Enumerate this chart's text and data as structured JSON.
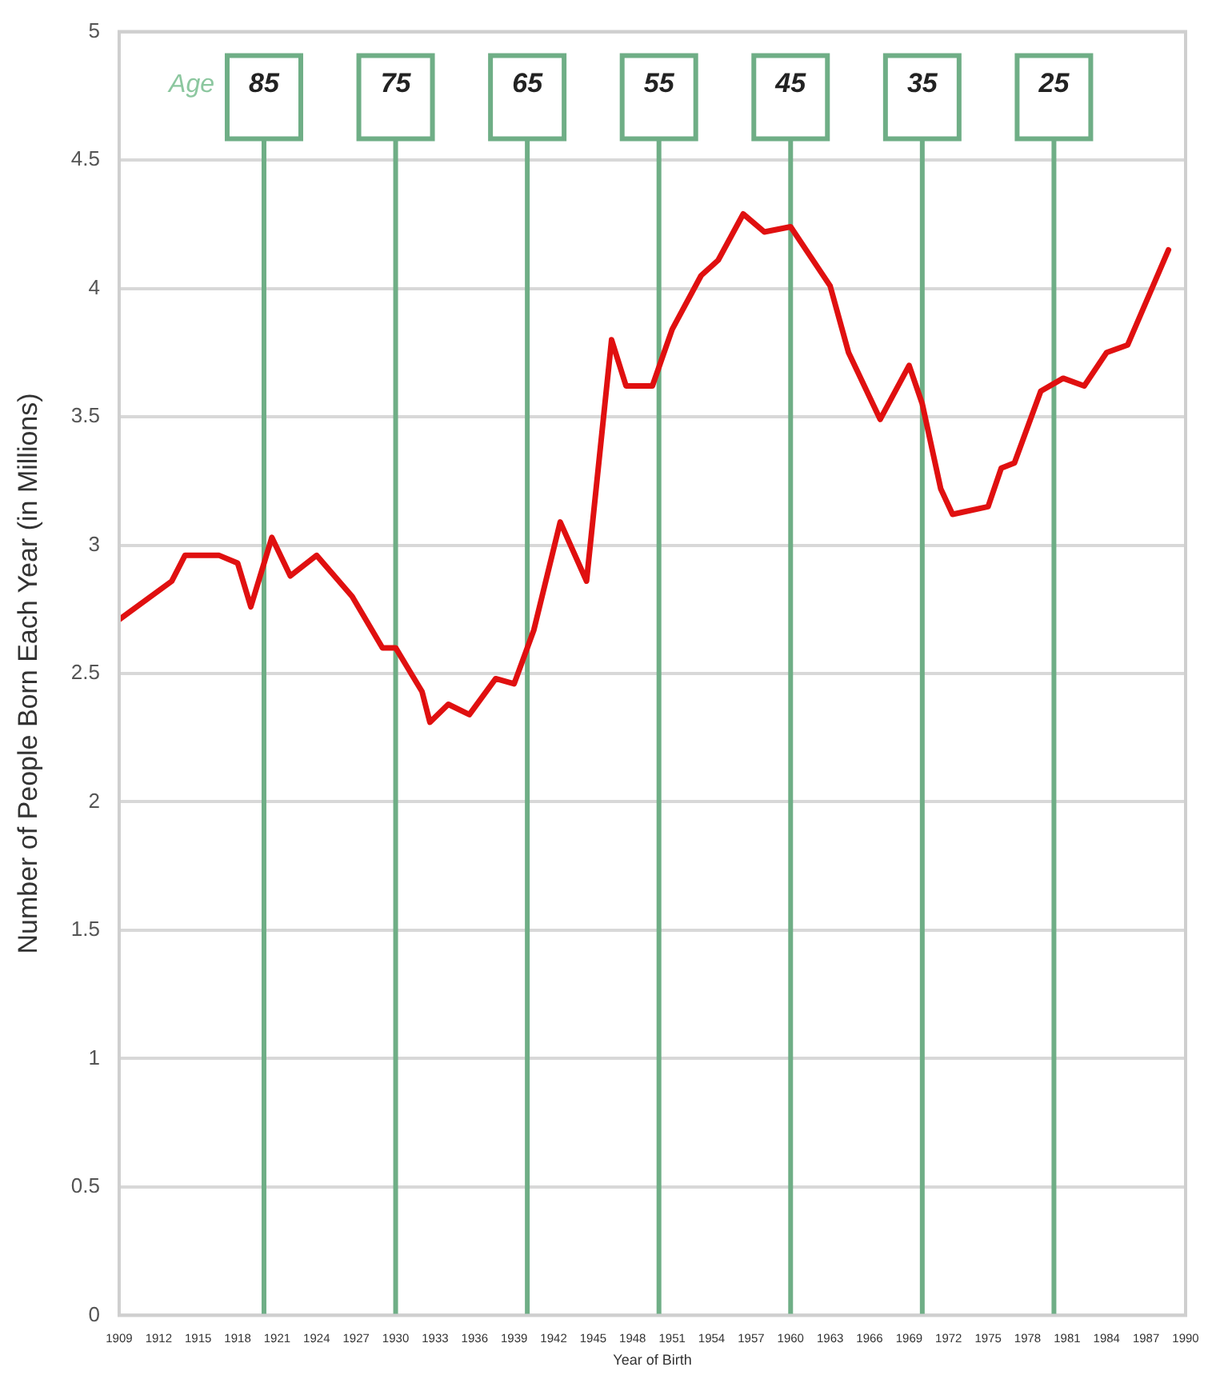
{
  "chart_data": {
    "type": "line",
    "xlabel": "Year of Birth",
    "ylabel": "Number of People Born Each Year (in Millions)",
    "annotations": [
      "Age",
      "85",
      "75",
      "65",
      "55",
      "45",
      "35",
      "25"
    ],
    "x": [
      1909,
      1913,
      1914,
      1916.6,
      1918,
      1919,
      1920.6,
      1922,
      1924,
      1926.7,
      1929,
      1930,
      1932,
      1932.6,
      1934,
      1935.6,
      1937.6,
      1939,
      1940.5,
      1942.5,
      1944.5,
      1946.4,
      1947.5,
      1949.5,
      1951,
      1953.2,
      1954.5,
      1956.4,
      1958,
      1960,
      1963,
      1964.4,
      1966.8,
      1969,
      1970,
      1971.4,
      1972.3,
      1975,
      1976,
      1977,
      1979,
      1980.7,
      1982.3,
      1984,
      1985.6,
      1988.7
    ],
    "series": [
      {
        "color": "#e01010",
        "values": [
          2.71,
          2.86,
          2.96,
          2.96,
          2.93,
          2.76,
          3.03,
          2.88,
          2.96,
          2.8,
          2.6,
          2.6,
          2.43,
          2.31,
          2.38,
          2.34,
          2.48,
          2.46,
          2.67,
          3.09,
          2.86,
          3.8,
          3.62,
          3.62,
          3.84,
          4.05,
          4.11,
          4.29,
          4.22,
          4.24,
          4.01,
          3.75,
          3.49,
          3.7,
          3.55,
          3.22,
          3.12,
          3.15,
          3.3,
          3.32,
          3.6,
          3.65,
          3.62,
          3.75,
          3.78,
          4.15
        ]
      }
    ],
    "xlim": [
      1909,
      1990
    ],
    "xticks": [
      1909,
      1912,
      1915,
      1918,
      1921,
      1924,
      1927,
      1930,
      1933,
      1936,
      1939,
      1942,
      1945,
      1948,
      1951,
      1954,
      1957,
      1960,
      1963,
      1966,
      1969,
      1972,
      1975,
      1978,
      1981,
      1984,
      1987,
      1990
    ],
    "ylim": [
      0,
      5
    ],
    "yticks": [
      0,
      0.5,
      1,
      1.5,
      2,
      2.5,
      3,
      3.5,
      4,
      4.5,
      5
    ],
    "ref_lines": [
      {
        "axis": "x",
        "value": 1920,
        "color": "#6fae86"
      },
      {
        "axis": "x",
        "value": 1930,
        "color": "#6fae86"
      },
      {
        "axis": "x",
        "value": 1940,
        "color": "#6fae86"
      },
      {
        "axis": "x",
        "value": 1950,
        "color": "#6fae86"
      },
      {
        "axis": "x",
        "value": 1960,
        "color": "#6fae86"
      },
      {
        "axis": "x",
        "value": 1970,
        "color": "#6fae86"
      },
      {
        "axis": "x",
        "value": 1980,
        "color": "#6fae86"
      }
    ],
    "grid": "y",
    "legend": false,
    "marker": "none",
    "line_style": "solid"
  }
}
